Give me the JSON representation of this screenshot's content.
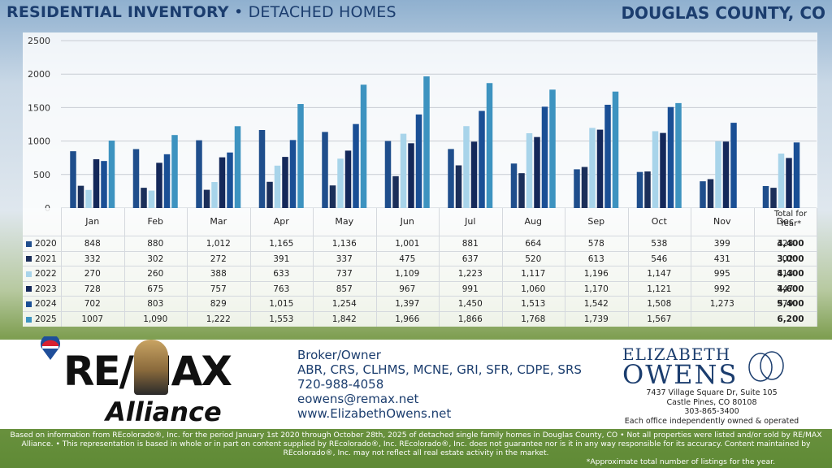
{
  "header": {
    "title_bold": "RESIDENTIAL INVENTORY",
    "title_rest": " • DETACHED HOMES",
    "region": "DOUGLAS COUNTY, CO"
  },
  "chart_data": {
    "type": "bar",
    "categories": [
      "Jan",
      "Feb",
      "Mar",
      "Apr",
      "May",
      "Jun",
      "Jul",
      "Aug",
      "Sep",
      "Oct",
      "Nov",
      "Dec"
    ],
    "ylim": [
      0,
      2500
    ],
    "yticks": [
      0,
      500,
      1000,
      1500,
      2000,
      2500
    ],
    "grid": true,
    "series": [
      {
        "name": "2020",
        "color": "#1f4e8c",
        "values": [
          848,
          880,
          1012,
          1165,
          1136,
          1001,
          881,
          664,
          578,
          538,
          399,
          328
        ],
        "labels": [
          "848",
          "880",
          "1,012",
          "1,165",
          "1,136",
          "1,001",
          "881",
          "664",
          "578",
          "538",
          "399",
          "328"
        ],
        "total": "4,400"
      },
      {
        "name": "2021",
        "color": "#1b2f5a",
        "values": [
          332,
          302,
          272,
          391,
          337,
          475,
          637,
          520,
          613,
          546,
          431,
          302
        ],
        "labels": [
          "332",
          "302",
          "272",
          "391",
          "337",
          "475",
          "637",
          "520",
          "613",
          "546",
          "431",
          "302"
        ],
        "total": "3,000"
      },
      {
        "name": "2022",
        "color": "#a8d4ea",
        "values": [
          270,
          260,
          388,
          633,
          737,
          1109,
          1223,
          1117,
          1196,
          1147,
          995,
          813
        ],
        "labels": [
          "270",
          "260",
          "388",
          "633",
          "737",
          "1,109",
          "1,223",
          "1,117",
          "1,196",
          "1,147",
          "995",
          "813"
        ],
        "total": "4,400"
      },
      {
        "name": "2023",
        "color": "#14285a",
        "values": [
          728,
          675,
          757,
          763,
          857,
          967,
          991,
          1060,
          1170,
          1121,
          992,
          747
        ],
        "labels": [
          "728",
          "675",
          "757",
          "763",
          "857",
          "967",
          "991",
          "1,060",
          "1,170",
          "1,121",
          "992",
          "747"
        ],
        "total": "4,600"
      },
      {
        "name": "2024",
        "color": "#1a4f95",
        "values": [
          702,
          803,
          829,
          1015,
          1254,
          1397,
          1450,
          1513,
          1542,
          1508,
          1273,
          979
        ],
        "labels": [
          "702",
          "803",
          "829",
          "1,015",
          "1,254",
          "1,397",
          "1,450",
          "1,513",
          "1,542",
          "1,508",
          "1,273",
          "979"
        ],
        "total": "5,400"
      },
      {
        "name": "2025",
        "color": "#3d93c0",
        "values": [
          1007,
          1090,
          1222,
          1553,
          1842,
          1966,
          1866,
          1768,
          1739,
          1567,
          null,
          null
        ],
        "labels": [
          "1007",
          "1,090",
          "1,222",
          "1,553",
          "1,842",
          "1,966",
          "1,866",
          "1,768",
          "1,739",
          "1,567",
          "",
          ""
        ],
        "total": "6,200"
      }
    ],
    "total_header": "Total for Year*"
  },
  "footer": {
    "remax": "RE/MAX",
    "alliance": "Alliance",
    "contact": {
      "role": "Broker/Owner",
      "credentials": "ABR, CRS, CLHMS, MCNE, GRI, SFR, CDPE, SRS",
      "phone": "720-988-4058",
      "email": "eowens@remax.net",
      "website": "www.ElizabethOwens.net"
    },
    "brand_line1": "ELIZABETH",
    "brand_line2": "OWENS",
    "brand_mark": "EO",
    "office": {
      "address1": "7437 Village Square Dr, Suite 105",
      "address2": "Castle Pines, CO 80108",
      "phone": "303-865-3400",
      "note": "Each office independently owned & operated"
    },
    "disclaimer": "Based on information from REcolorado®, Inc. for the period January 1st 2020 through October 28th, 2025 of detached single family homes in Douglas County, CO • Not all properties were listed and/or sold by RE/MAX Alliance. • This representation is based in whole or in part on content supplied by REcolorado®, Inc. REcolorado®, Inc. does not guarantee nor is it in any way responsible for its accuracy. Content maintained by REcolorado®, Inc. may not reflect all real estate activity in the market.",
    "approx_note": "*Approximate total number of listings for the year."
  }
}
